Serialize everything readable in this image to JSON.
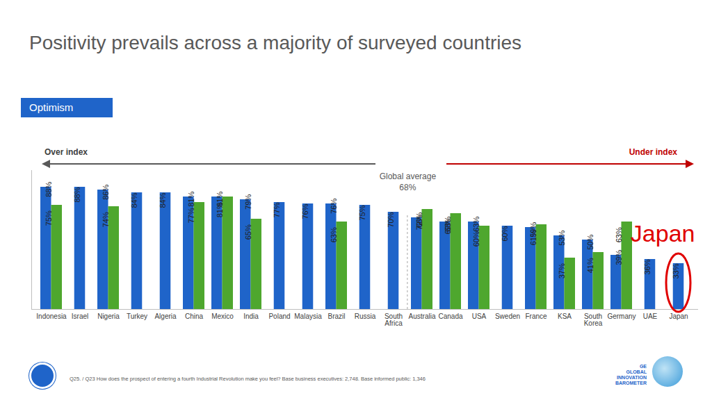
{
  "chart_data": {
    "type": "bar",
    "title": "Positivity prevails across a majority of surveyed countries",
    "panel_label": "Optimism",
    "over_index_label": "Over index",
    "under_index_label": "Under index",
    "categories": [
      "Indonesia",
      "Israel",
      "Nigeria",
      "Turkey",
      "Algeria",
      "China",
      "Mexico",
      "India",
      "Poland",
      "Malaysia",
      "Brazil",
      "Russia",
      "South Africa",
      "Australia",
      "Canada",
      "USA",
      "Sweden",
      "France",
      "KSA",
      "South Korea",
      "Germany",
      "UAE",
      "Japan"
    ],
    "series": [
      {
        "color": "#1f64c9",
        "values": [
          88,
          88,
          86,
          84,
          84,
          81,
          81,
          79,
          77,
          76,
          76,
          75,
          70,
          66,
          63,
          63,
          60,
          59,
          53,
          50,
          39,
          36,
          33
        ],
        "value_labels": [
          "88%",
          "88%",
          "86%",
          "84%",
          "84%",
          "81%",
          "81%",
          "79%",
          "77%",
          "76%",
          "76%",
          "75%",
          "70%",
          "66%",
          "63%",
          "63%",
          "60%",
          "59%",
          "53%",
          "50%",
          "39%",
          "36%",
          "33%"
        ]
      },
      {
        "color": "#4ea72e",
        "values": [
          75,
          null,
          74,
          null,
          null,
          77,
          81,
          65,
          null,
          null,
          63,
          null,
          null,
          72,
          69,
          60,
          null,
          61,
          37,
          41,
          63,
          null,
          null
        ],
        "value_labels": [
          "75%",
          null,
          "74%",
          null,
          null,
          "77%",
          "81%",
          "65%",
          null,
          null,
          "63%",
          null,
          null,
          "72%",
          "69%",
          "60%",
          null,
          "61%",
          "37%",
          "41%",
          "63%",
          null,
          null
        ]
      }
    ],
    "ylim": [
      0,
      100
    ],
    "yticks": [],
    "tick_labels": "x",
    "grid": false,
    "data_labels": true,
    "global_average": {
      "label": "Global average",
      "value": 68,
      "value_label": "68%"
    },
    "highlight": {
      "text": "Japan",
      "category": "Japan"
    },
    "footnote": "Q25. / Q23 How does the prospect of entering a fourth Industrial Revolution make you feel? Base business executives: 2,748. Base informed public: 1,346",
    "logo_text": [
      "GE",
      "GLOBAL",
      "INNOVATION",
      "BAROMETER"
    ]
  }
}
